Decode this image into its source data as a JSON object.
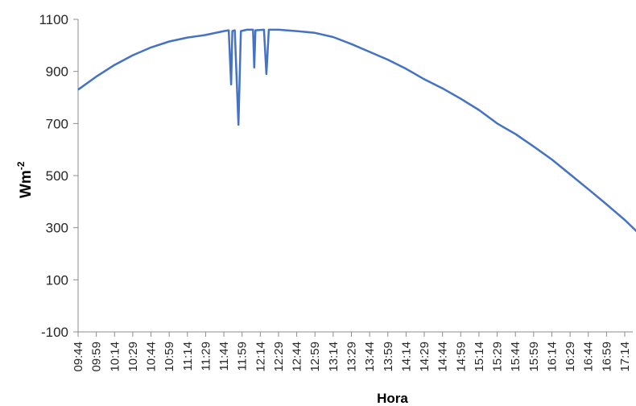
{
  "chart_data": {
    "type": "line",
    "xlabel": "Hora",
    "ylabel": "Wm",
    "ylabel_superscript": "-2",
    "ylim": [
      -100,
      1100
    ],
    "yticks": [
      -100,
      100,
      300,
      500,
      700,
      900,
      1100
    ],
    "xticks": [
      "09:44",
      "09:59",
      "10:14",
      "10:29",
      "10:44",
      "10:59",
      "11:14",
      "11:29",
      "11:44",
      "11:59",
      "12:14",
      "12:29",
      "12:44",
      "12:59",
      "13:14",
      "13:29",
      "13:44",
      "13:59",
      "14:14",
      "14:29",
      "14:44",
      "14:59",
      "15:14",
      "15:29",
      "15:44",
      "15:59",
      "16:14",
      "16:29",
      "16:44",
      "16:59",
      "17:14"
    ],
    "grid": false,
    "legend": "none",
    "series": [
      {
        "color": "#4472C4",
        "points": [
          [
            "09:44",
            830
          ],
          [
            "09:59",
            880
          ],
          [
            "10:14",
            925
          ],
          [
            "10:29",
            962
          ],
          [
            "10:44",
            992
          ],
          [
            "10:59",
            1015
          ],
          [
            "11:14",
            1030
          ],
          [
            "11:29",
            1040
          ],
          [
            "11:44",
            1055
          ],
          [
            "11:48",
            1058
          ],
          [
            "11:50",
            850
          ],
          [
            "11:51",
            1055
          ],
          [
            "11:53",
            1058
          ],
          [
            "11:56",
            695
          ],
          [
            "11:58",
            1055
          ],
          [
            "12:03",
            1060
          ],
          [
            "12:08",
            1060
          ],
          [
            "12:09",
            915
          ],
          [
            "12:10",
            1058
          ],
          [
            "12:17",
            1060
          ],
          [
            "12:19",
            890
          ],
          [
            "12:21",
            1060
          ],
          [
            "12:29",
            1060
          ],
          [
            "12:44",
            1055
          ],
          [
            "12:59",
            1048
          ],
          [
            "13:14",
            1032
          ],
          [
            "13:29",
            1005
          ],
          [
            "13:44",
            975
          ],
          [
            "13:59",
            945
          ],
          [
            "14:14",
            910
          ],
          [
            "14:29",
            870
          ],
          [
            "14:44",
            835
          ],
          [
            "14:59",
            795
          ],
          [
            "15:14",
            752
          ],
          [
            "15:29",
            700
          ],
          [
            "15:44",
            660
          ],
          [
            "15:59",
            612
          ],
          [
            "16:14",
            562
          ],
          [
            "16:29",
            505
          ],
          [
            "16:44",
            448
          ],
          [
            "16:59",
            390
          ],
          [
            "17:14",
            330
          ],
          [
            "17:24",
            285
          ]
        ]
      }
    ]
  }
}
